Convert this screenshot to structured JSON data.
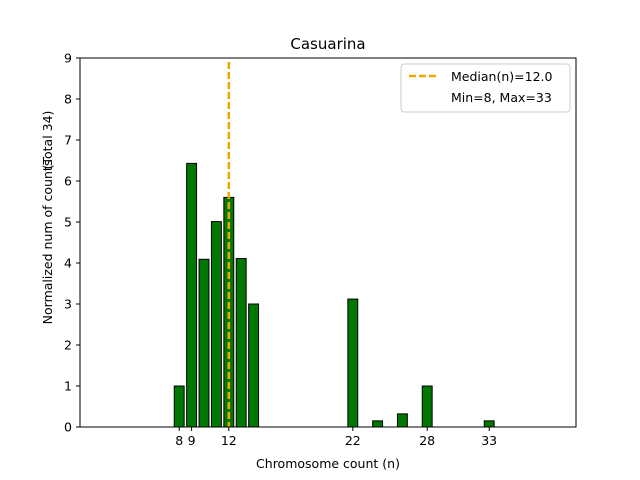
{
  "chart_data": {
    "type": "bar",
    "title": "Casuarina",
    "xlabel": "Chromosome count (n)",
    "ylabel": "Normalized num of counts",
    "ylabel_note": "(Total 34)",
    "xlim": [
      0,
      40
    ],
    "ylim": [
      0,
      9
    ],
    "xticks": [
      8,
      9,
      12,
      22,
      28,
      33
    ],
    "yticks": [
      0,
      1,
      2,
      3,
      4,
      5,
      6,
      7,
      8,
      9
    ],
    "bars": [
      {
        "x": 8,
        "value": 1.0
      },
      {
        "x": 9,
        "value": 6.43
      },
      {
        "x": 10,
        "value": 4.09
      },
      {
        "x": 11,
        "value": 5.01
      },
      {
        "x": 12,
        "value": 5.6
      },
      {
        "x": 13,
        "value": 4.11
      },
      {
        "x": 14,
        "value": 3.0
      },
      {
        "x": 22,
        "value": 3.12
      },
      {
        "x": 24,
        "value": 0.15
      },
      {
        "x": 26,
        "value": 0.32
      },
      {
        "x": 28,
        "value": 1.0
      },
      {
        "x": 33,
        "value": 0.15
      }
    ],
    "bar_color": "#007700",
    "bar_edge_color": "#000000",
    "median": {
      "value": 12.0,
      "color": "#f0a800"
    },
    "legend": {
      "position": "top-right",
      "entries": [
        "Median(n)=12.0",
        "Min=8, Max=33"
      ]
    },
    "grid": false
  }
}
